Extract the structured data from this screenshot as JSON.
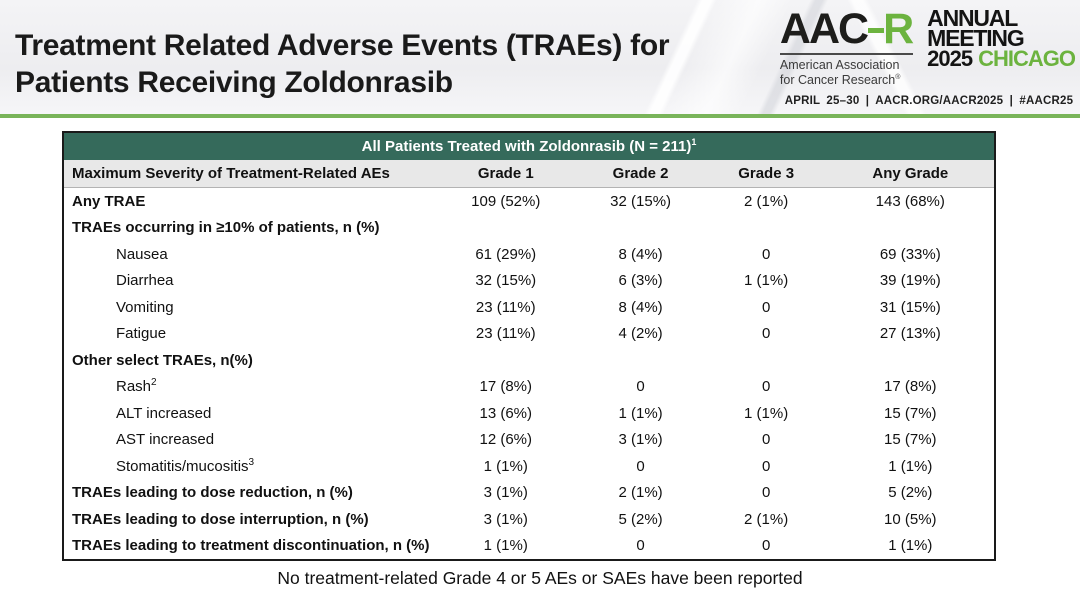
{
  "slide": {
    "title_line1": "Treatment Related Adverse Events (TRAEs) for",
    "title_line2": "Patients Receiving Zoldonrasib",
    "footer_note": "No treatment-related Grade 4 or 5 AEs or SAEs have been reported"
  },
  "logo": {
    "wordmark_prefix": "AAC",
    "wordmark_suffix": "R",
    "association_line1": "American Association",
    "association_line2": "for Cancer Research",
    "registered_mark": "®",
    "meeting_line1": "ANNUAL",
    "meeting_line2": "MEETING",
    "meeting_year": "2025",
    "meeting_city": "CHICAGO",
    "date_line": "APRIL 25–30 | AACR.ORG/AACR2025 | #AACR25"
  },
  "table": {
    "title": "All Patients Treated with Zoldonrasib (N = 211)",
    "title_sup": "1",
    "columns": [
      "Maximum Severity of Treatment-Related AEs",
      "Grade 1",
      "Grade 2",
      "Grade 3",
      "Any Grade"
    ],
    "rows": [
      {
        "label": "Any TRAE",
        "bold": true,
        "indent": 0,
        "values": [
          "109 (52%)",
          "32 (15%)",
          "2 (1%)",
          "143 (68%)"
        ]
      },
      {
        "label": "TRAEs occurring in ≥10% of patients, n (%)",
        "bold": true,
        "indent": 0,
        "values": [
          "",
          "",
          "",
          ""
        ]
      },
      {
        "label": "Nausea",
        "bold": false,
        "indent": 1,
        "values": [
          "61 (29%)",
          "8 (4%)",
          "0",
          "69 (33%)"
        ]
      },
      {
        "label": "Diarrhea",
        "bold": false,
        "indent": 1,
        "values": [
          "32 (15%)",
          "6 (3%)",
          "1 (1%)",
          "39 (19%)"
        ]
      },
      {
        "label": "Vomiting",
        "bold": false,
        "indent": 1,
        "values": [
          "23 (11%)",
          "8 (4%)",
          "0",
          "31 (15%)"
        ]
      },
      {
        "label": "Fatigue",
        "bold": false,
        "indent": 1,
        "values": [
          "23 (11%)",
          "4 (2%)",
          "0",
          "27 (13%)"
        ]
      },
      {
        "label": "Other select TRAEs, n(%)",
        "bold": true,
        "indent": 0,
        "values": [
          "",
          "",
          "",
          ""
        ]
      },
      {
        "label": "Rash",
        "sup": "2",
        "bold": false,
        "indent": 1,
        "values": [
          "17 (8%)",
          "0",
          "0",
          "17 (8%)"
        ]
      },
      {
        "label": "ALT increased",
        "bold": false,
        "indent": 1,
        "values": [
          "13 (6%)",
          "1 (1%)",
          "1 (1%)",
          "15 (7%)"
        ]
      },
      {
        "label": "AST increased",
        "bold": false,
        "indent": 1,
        "values": [
          "12 (6%)",
          "3 (1%)",
          "0",
          "15 (7%)"
        ]
      },
      {
        "label": "Stomatitis/mucositis",
        "sup": "3",
        "bold": false,
        "indent": 1,
        "values": [
          "1 (1%)",
          "0",
          "0",
          "1 (1%)"
        ]
      },
      {
        "label": "TRAEs leading to dose reduction, n (%)",
        "bold": true,
        "indent": 0,
        "values": [
          "3 (1%)",
          "2 (1%)",
          "0",
          "5 (2%)"
        ]
      },
      {
        "label": "TRAEs leading to dose interruption, n (%)",
        "bold": true,
        "indent": 0,
        "values": [
          "3 (1%)",
          "5 (2%)",
          "2 (1%)",
          "10 (5%)"
        ]
      },
      {
        "label": "TRAEs leading to treatment discontinuation, n (%)",
        "bold": true,
        "indent": 0,
        "values": [
          "1 (1%)",
          "0",
          "0",
          "1 (1%)"
        ]
      }
    ]
  },
  "theme": {
    "header_green": "#356A5B",
    "rule_green": "#79B45A",
    "brand_green": "#6CB33F",
    "mark_blue": "#2E79BE",
    "mark_dark": "#16423C",
    "mark_yellow": "#F3C338",
    "mark_teal": "#2D9A8A"
  }
}
